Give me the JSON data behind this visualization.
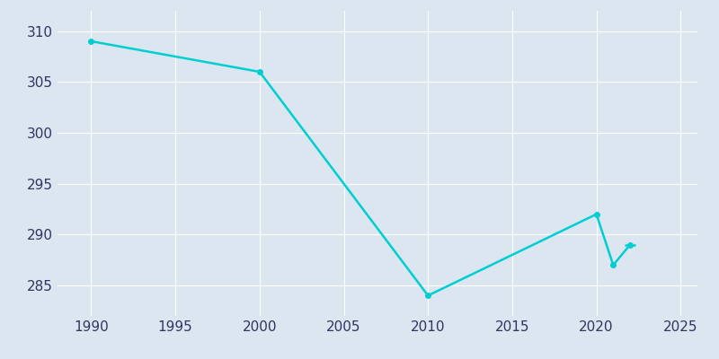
{
  "years": [
    1990,
    2000,
    2010,
    2020,
    2021,
    2022
  ],
  "population": [
    309,
    306,
    284,
    292,
    287,
    289
  ],
  "line_color": "#00CED1",
  "bg_color": "#dce6f0",
  "plot_bg_color": "#dce6f0",
  "xlabel": "",
  "ylabel": "",
  "xlim": [
    1988,
    2026
  ],
  "ylim": [
    282,
    312
  ],
  "yticks": [
    285,
    290,
    295,
    300,
    305,
    310
  ],
  "xticks": [
    1990,
    1995,
    2000,
    2005,
    2010,
    2015,
    2020,
    2025
  ],
  "line_width": 1.8,
  "marker_size": 4,
  "tick_label_color": "#2d3561",
  "tick_label_fontsize": 11,
  "grid_color": "#ffffff",
  "grid_alpha": 1.0,
  "grid_linewidth": 0.8
}
